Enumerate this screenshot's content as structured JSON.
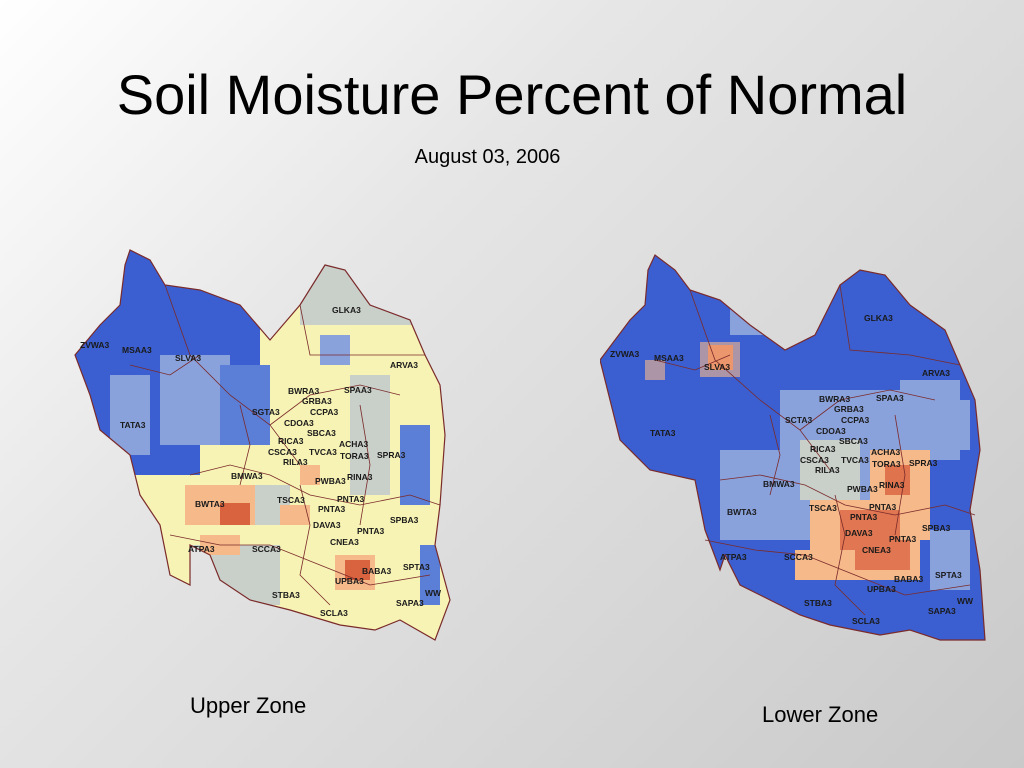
{
  "page": {
    "title": "Soil Moisture Percent of Normal",
    "date": "August 03, 2006"
  },
  "maps": [
    {
      "id": "upper",
      "caption": "Upper Zone",
      "fill_color": "#f7f3b4",
      "labels": [
        "ZVWA3",
        "MSAA3",
        "SLVA3",
        "TATA3",
        "GLKA3",
        "ARVA3",
        "BWRA3",
        "SPAA3",
        "GRBA3",
        "SGTA3",
        "CCPA3",
        "CDOA3",
        "SBCA3",
        "RICA3",
        "ACHA3",
        "CSCA3",
        "TVCA3",
        "TORA3",
        "RILA3",
        "SPRA3",
        "BMWA3",
        "PWBA3",
        "RINA3",
        "TSCA3",
        "PNTA3",
        "BWTA3",
        "PNTA3",
        "DAVA3",
        "SPBA3",
        "PNTA3",
        "CNEA3",
        "ATPA3",
        "SCCA3",
        "BABA3",
        "SPTA3",
        "UPBA3",
        "STBA3",
        "SAPA3",
        "WW",
        "SCLA3"
      ]
    },
    {
      "id": "lower",
      "caption": "Lower Zone",
      "fill_color": "#4a6fd4",
      "labels": [
        "ZVWA3",
        "MSAA3",
        "SLVA3",
        "GLKA3",
        "TATA3",
        "ARVA3",
        "BWRA3",
        "SPAA3",
        "GRBA3",
        "SCTA3",
        "CCPA3",
        "CDOA3",
        "SBCA3",
        "RICA3",
        "ACHA3",
        "CSCA3",
        "TVCA3",
        "TORA3",
        "SPRA3",
        "RILA3",
        "BMWA3",
        "PWBA3",
        "RINA3",
        "TSCA3",
        "PNTA3",
        "BWTA3",
        "PNTA3",
        "DAVA3",
        "SPBA3",
        "PNTA3",
        "CNEA3",
        "ATPA3",
        "SCCA3",
        "SPTA3",
        "BABA3",
        "UPBA3",
        "STBA3",
        "WW",
        "SAPA3",
        "SCLA3"
      ]
    }
  ],
  "colors": {
    "wet": "#3b5fd0",
    "moderately_wet": "#8aa2dc",
    "near_normal": "#c9cfc9",
    "dry": "#f6b98a",
    "very_dry": "#d9623f",
    "boundary": "#7a2a2a"
  }
}
